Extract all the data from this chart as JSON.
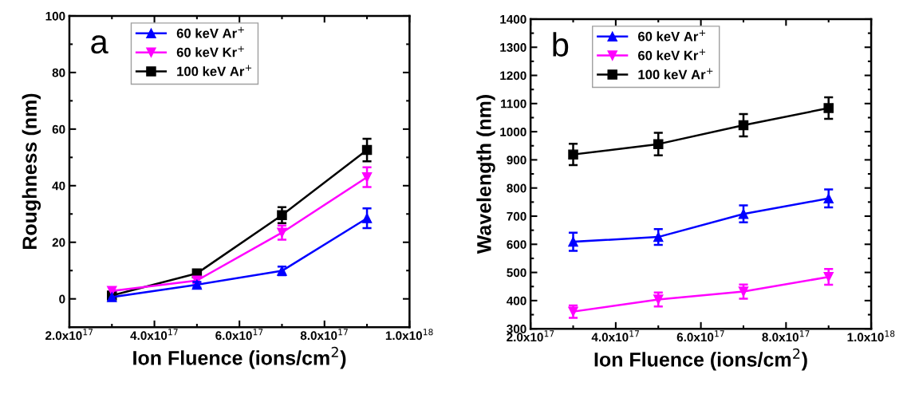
{
  "chart_data": [
    {
      "type": "line",
      "ylabel": "Roughness (nm)",
      "xlabel": "Ion Fluence (ions/cm$^{2}$)",
      "annotations": [
        "a"
      ],
      "x": [
        3e+17,
        5e+17,
        7e+17,
        9e+17
      ],
      "xlim": [
        2e+17,
        1e+18
      ],
      "xticks": [
        {
          "value": 2e+17,
          "label": "2.0x10$^{17}$"
        },
        {
          "value": 4e+17,
          "label": "4.0x10$^{17}$"
        },
        {
          "value": 6e+17,
          "label": "6.0x10$^{17}$"
        },
        {
          "value": 8e+17,
          "label": "8.0x10$^{17}$"
        },
        {
          "value": 1e+18,
          "label": "1.0x10$^{18}$"
        }
      ],
      "ylim": [
        -10,
        100
      ],
      "yticks": [
        0,
        20,
        40,
        60,
        80,
        100
      ],
      "legend": "top left",
      "grid": false,
      "line_style": "solid",
      "series": [
        {
          "name": "60 keV Ar$^{+}$",
          "color": "#0000ff",
          "marker": "triangle",
          "values": [
            0.6,
            5,
            9.9,
            28.5
          ],
          "errors": [
            null,
            1,
            1.5,
            3.5
          ]
        },
        {
          "name": "60 keV Kr$^{+}$",
          "color": "#ff00ff",
          "marker": "triangle_down",
          "values": [
            2.8,
            6.5,
            23.4,
            43
          ],
          "errors": [
            null,
            1,
            2.5,
            3.5
          ]
        },
        {
          "name": "100 keV Ar$^{+}$",
          "color": "#000000",
          "marker": "square",
          "values": [
            1.2,
            9,
            29.6,
            52.6
          ],
          "errors": [
            null,
            1,
            2.8,
            4
          ]
        }
      ]
    },
    {
      "type": "line",
      "ylabel": "Wavelength (nm)",
      "xlabel": "Ion Fluence (ions/cm$^{2}$)",
      "annotations": [
        "b"
      ],
      "x": [
        3e+17,
        5e+17,
        7e+17,
        9e+17
      ],
      "xlim": [
        2e+17,
        1e+18
      ],
      "xticks": [
        {
          "value": 2e+17,
          "label": "2.0x10$^{17}$"
        },
        {
          "value": 4e+17,
          "label": "4.0x10$^{17}$"
        },
        {
          "value": 6e+17,
          "label": "6.0x10$^{17}$"
        },
        {
          "value": 8e+17,
          "label": "8.0x10$^{17}$"
        },
        {
          "value": 1e+18,
          "label": "1.0x10$^{18}$"
        }
      ],
      "ylim": [
        300,
        1400
      ],
      "yticks": [
        300,
        400,
        500,
        600,
        700,
        800,
        900,
        1000,
        1100,
        1200,
        1300,
        1400
      ],
      "legend": "top left",
      "grid": false,
      "line_style": "solid",
      "series": [
        {
          "name": "60 keV Ar$^{+}$",
          "color": "#0000ff",
          "marker": "triangle",
          "values": [
            609,
            626,
            708,
            763
          ],
          "errors": [
            32,
            28,
            30,
            32
          ]
        },
        {
          "name": "60 keV Kr$^{+}$",
          "color": "#ff00ff",
          "marker": "triangle_down",
          "values": [
            361,
            404,
            432,
            484
          ],
          "errors": [
            22,
            25,
            25,
            28
          ]
        },
        {
          "name": "100 keV Ar$^{+}$",
          "color": "#000000",
          "marker": "square",
          "values": [
            919,
            956,
            1023,
            1084
          ],
          "errors": [
            38,
            40,
            40,
            38
          ]
        }
      ]
    }
  ]
}
